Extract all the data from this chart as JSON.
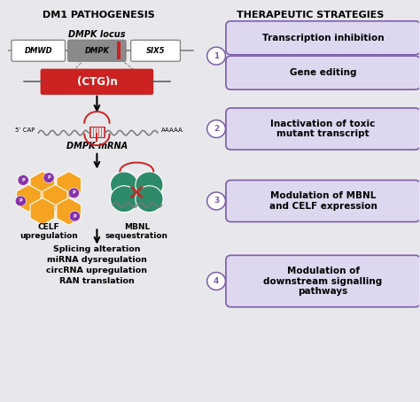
{
  "title_left": "DM1 PATHOGENESIS",
  "title_right": "THERAPEUTIC STRATEGIES",
  "bg_color": "#e8e8ec",
  "box_fill": "#ddd8ef",
  "box_edge": "#7b5ea7",
  "ctg_label": "(CTG)n",
  "mrna_label": "DMPK mRNA",
  "cap_label": "5’ CAP",
  "poly_a_label": "AAAAA",
  "celf_label": "CELF\nupregulation",
  "mbnl_label": "MBNL\nsequestration",
  "downstream_text": "Splicing alteration\nmiRNA dysregulation\ncircRNA upregulation\nRAN translation",
  "box1a": "Transcription inhibition",
  "box1b": "Gene editing",
  "box2": "Inactivation of toxic\nmutant transcript",
  "box3": "Modulation of MBNL\nand CELF expression",
  "box4": "Modulation of\ndownstream signalling\npathways",
  "arrow_color": "#7b5ea7",
  "orange_hex": "#f5a320",
  "teal_hex": "#2e8b6a",
  "red_hex": "#cc2222",
  "purple_hex": "#8833aa",
  "gray_gene": "#888888",
  "locus_label": "DMPK locus"
}
